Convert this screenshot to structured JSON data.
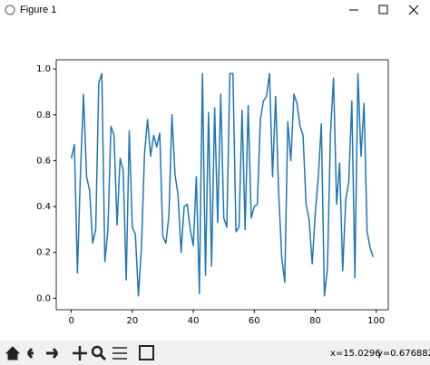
{
  "window": {
    "title": "Figure 1"
  },
  "status": {
    "x": "x=15.0296",
    "y": "y=0.676882"
  },
  "chart_data": {
    "type": "line",
    "x": [
      0,
      1,
      2,
      3,
      4,
      5,
      6,
      7,
      8,
      9,
      10,
      11,
      12,
      13,
      14,
      15,
      16,
      17,
      18,
      19,
      20,
      21,
      22,
      23,
      24,
      25,
      26,
      27,
      28,
      29,
      30,
      31,
      32,
      33,
      34,
      35,
      36,
      37,
      38,
      39,
      40,
      41,
      42,
      43,
      44,
      45,
      46,
      47,
      48,
      49,
      50,
      51,
      52,
      53,
      54,
      55,
      56,
      57,
      58,
      59,
      60,
      61,
      62,
      63,
      64,
      65,
      66,
      67,
      68,
      69,
      70,
      71,
      72,
      73,
      74,
      75,
      76,
      77,
      78,
      79,
      80,
      81,
      82,
      83,
      84,
      85,
      86,
      87,
      88,
      89,
      90,
      91,
      92,
      93,
      94,
      95,
      96,
      97,
      98,
      99
    ],
    "values": [
      0.61,
      0.67,
      0.11,
      0.55,
      0.89,
      0.53,
      0.47,
      0.24,
      0.3,
      0.94,
      0.98,
      0.16,
      0.3,
      0.75,
      0.71,
      0.32,
      0.61,
      0.56,
      0.08,
      0.73,
      0.31,
      0.28,
      0.01,
      0.22,
      0.63,
      0.78,
      0.62,
      0.71,
      0.66,
      0.72,
      0.27,
      0.24,
      0.36,
      0.8,
      0.54,
      0.45,
      0.2,
      0.4,
      0.41,
      0.3,
      0.23,
      0.53,
      0.02,
      0.98,
      0.1,
      0.81,
      0.14,
      0.83,
      0.33,
      0.89,
      0.35,
      0.31,
      0.98,
      0.98,
      0.29,
      0.31,
      0.82,
      0.3,
      0.84,
      0.35,
      0.4,
      0.41,
      0.78,
      0.86,
      0.88,
      0.98,
      0.53,
      0.88,
      0.46,
      0.18,
      0.07,
      0.77,
      0.6,
      0.89,
      0.85,
      0.75,
      0.71,
      0.41,
      0.34,
      0.15,
      0.37,
      0.53,
      0.76,
      0.01,
      0.13,
      0.72,
      0.96,
      0.41,
      0.59,
      0.12,
      0.43,
      0.51,
      0.86,
      0.09,
      0.98,
      0.62,
      0.85,
      0.29,
      0.22,
      0.18
    ],
    "color": "#1f77b4",
    "xlim": [
      -4.95,
      103.95
    ],
    "xticks": [
      0,
      20,
      40,
      60,
      80,
      100
    ],
    "ylim": [
      -0.05,
      1.04
    ],
    "yticks": [
      {
        "value": 0,
        "label": "0.0"
      },
      0.2,
      0.4,
      0.6,
      0.8,
      {
        "value": 1,
        "label": "1.0"
      }
    ]
  }
}
